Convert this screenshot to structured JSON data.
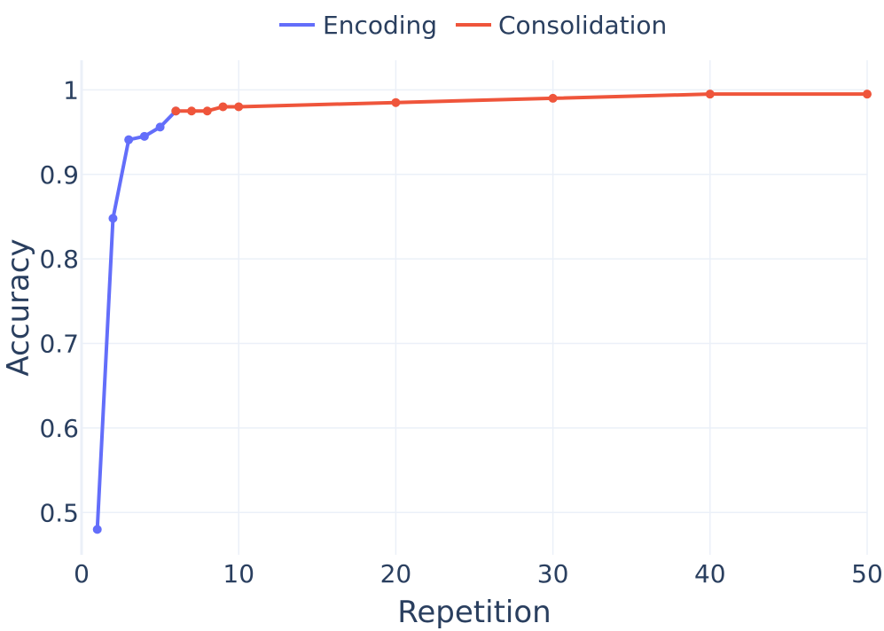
{
  "chart_data": {
    "type": "line",
    "xlabel": "Repetition",
    "ylabel": "Accuracy",
    "xlim": [
      0,
      50
    ],
    "ylim": [
      0.45,
      1.035
    ],
    "x_ticks": [
      0,
      10,
      20,
      30,
      40,
      50
    ],
    "x_tick_labels": [
      "0",
      "10",
      "20",
      "30",
      "40",
      "50"
    ],
    "y_ticks": [
      0.5,
      0.6,
      0.7,
      0.8,
      0.9,
      1
    ],
    "y_tick_labels": [
      "0.5",
      "0.6",
      "0.7",
      "0.8",
      "0.9",
      "1"
    ],
    "grid": true,
    "legend_position": "top-center",
    "series": [
      {
        "name": "Encoding",
        "color": "#636efa",
        "x": [
          1,
          2,
          3,
          4,
          5,
          6
        ],
        "y": [
          0.48,
          0.848,
          0.941,
          0.945,
          0.956,
          0.975
        ]
      },
      {
        "name": "Consolidation",
        "color": "#ef553b",
        "x": [
          6,
          7,
          8,
          9,
          10,
          20,
          30,
          40,
          50
        ],
        "y": [
          0.975,
          0.975,
          0.975,
          0.98,
          0.98,
          0.985,
          0.99,
          0.995,
          0.995
        ]
      }
    ]
  }
}
